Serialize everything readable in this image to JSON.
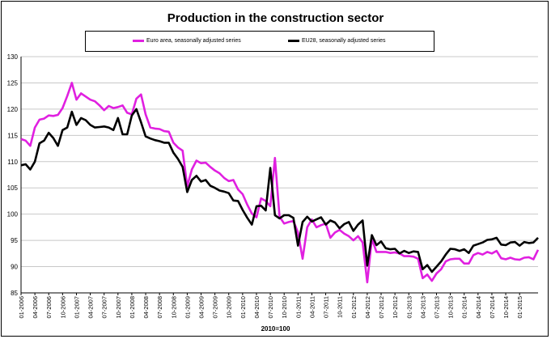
{
  "title": "Production in the construction sector",
  "x_caption": "2010=100",
  "legend": {
    "euro_label": "Euro area, seasonally adjusted series",
    "eu_label": "EU28, seasonally adjusted series"
  },
  "colors": {
    "euro": "#e020e0",
    "eu": "#000000"
  },
  "chart_data": {
    "type": "line",
    "title": "Production in the construction sector",
    "xlabel": "2010=100",
    "ylabel": "",
    "ylim": [
      85,
      130
    ],
    "yticks": [
      85,
      90,
      95,
      100,
      105,
      110,
      115,
      120,
      125,
      130
    ],
    "grid": true,
    "legend_position": "top",
    "x_start": "2006-01",
    "x_end": "2015-01",
    "x_tick_labels": [
      "01-2006",
      "04-2006",
      "07-2006",
      "10-2006",
      "01-2007",
      "04-2007",
      "07-2007",
      "10-2007",
      "01-2008",
      "04-2008",
      "07-2008",
      "10-2008",
      "01-2009",
      "04-2009",
      "07-2009",
      "10-2009",
      "01-2010",
      "04-2010",
      "07-2010",
      "10-2010",
      "01-2011",
      "04-2011",
      "07-2011",
      "10-2011",
      "01-2012",
      "04-2012",
      "07-2012",
      "10-2012",
      "01-2013",
      "04-2013",
      "07-2013",
      "10-2013",
      "01-2014",
      "04-2014",
      "07-2014",
      "10-2014",
      "01-2015"
    ],
    "series": [
      {
        "name": "Euro area, seasonally adjusted series",
        "values": [
          114.3,
          114.0,
          113.0,
          116.5,
          118.0,
          118.2,
          118.8,
          118.7,
          118.9,
          120.2,
          122.5,
          125.0,
          121.8,
          123.0,
          122.4,
          121.8,
          121.5,
          120.7,
          119.8,
          120.6,
          120.2,
          120.4,
          120.7,
          119.3,
          119.0,
          122.0,
          122.8,
          119.0,
          116.5,
          116.3,
          116.2,
          115.8,
          115.7,
          113.6,
          112.7,
          112.1,
          105.3,
          108.5,
          110.2,
          109.7,
          109.8,
          109.0,
          108.3,
          107.8,
          106.9,
          106.3,
          106.5,
          104.7,
          103.8,
          101.8,
          100.1,
          99.4,
          103.0,
          102.5,
          101.5,
          110.7,
          99.5,
          98.2,
          98.5,
          98.7,
          96.5,
          91.5,
          97.5,
          99.0,
          97.5,
          97.9,
          98.2,
          95.5,
          96.5,
          97.0,
          96.3,
          95.8,
          95.0,
          95.8,
          94.6,
          87.0,
          95.3,
          92.8,
          92.8,
          92.8,
          92.6,
          92.7,
          92.5,
          92.0,
          92.0,
          91.9,
          91.5,
          87.8,
          88.5,
          87.3,
          88.7,
          89.5,
          91.0,
          91.4,
          91.5,
          91.5,
          90.6,
          90.6,
          92.2,
          92.6,
          92.3,
          92.8,
          92.5,
          93.0,
          91.6,
          91.4,
          91.7,
          91.4,
          91.3,
          91.7,
          91.8,
          91.4,
          93.2
        ]
      },
      {
        "name": "EU28, seasonally adjusted series",
        "values": [
          109.3,
          109.5,
          108.5,
          110.0,
          113.5,
          114.0,
          115.5,
          114.5,
          113.0,
          116.0,
          116.5,
          119.5,
          117.0,
          118.3,
          117.9,
          117.0,
          116.5,
          116.6,
          116.7,
          116.5,
          116.0,
          118.3,
          115.2,
          115.2,
          118.8,
          120.0,
          117.5,
          114.8,
          114.4,
          114.1,
          113.9,
          113.6,
          113.6,
          111.7,
          110.5,
          109.0,
          104.2,
          106.5,
          107.3,
          106.2,
          106.5,
          105.4,
          105.0,
          104.5,
          104.3,
          104.0,
          102.6,
          102.5,
          100.8,
          99.3,
          98.0,
          101.5,
          101.6,
          100.7,
          108.8,
          99.8,
          99.2,
          99.8,
          99.8,
          99.3,
          94.0,
          98.5,
          99.5,
          98.6,
          99.0,
          99.4,
          98.0,
          98.8,
          98.4,
          97.3,
          98.1,
          98.5,
          96.8,
          98.0,
          98.8,
          90.2,
          96.0,
          94.1,
          94.8,
          93.5,
          93.3,
          93.4,
          92.5,
          93.0,
          92.6,
          92.9,
          92.8,
          89.5,
          90.3,
          89.0,
          90.0,
          91.0,
          92.3,
          93.4,
          93.3,
          93.0,
          93.3,
          92.6,
          94.0,
          94.3,
          94.6,
          95.1,
          95.2,
          95.5,
          94.2,
          94.1,
          94.6,
          94.7,
          94.0,
          94.7,
          94.5,
          94.6,
          95.5
        ]
      }
    ]
  }
}
